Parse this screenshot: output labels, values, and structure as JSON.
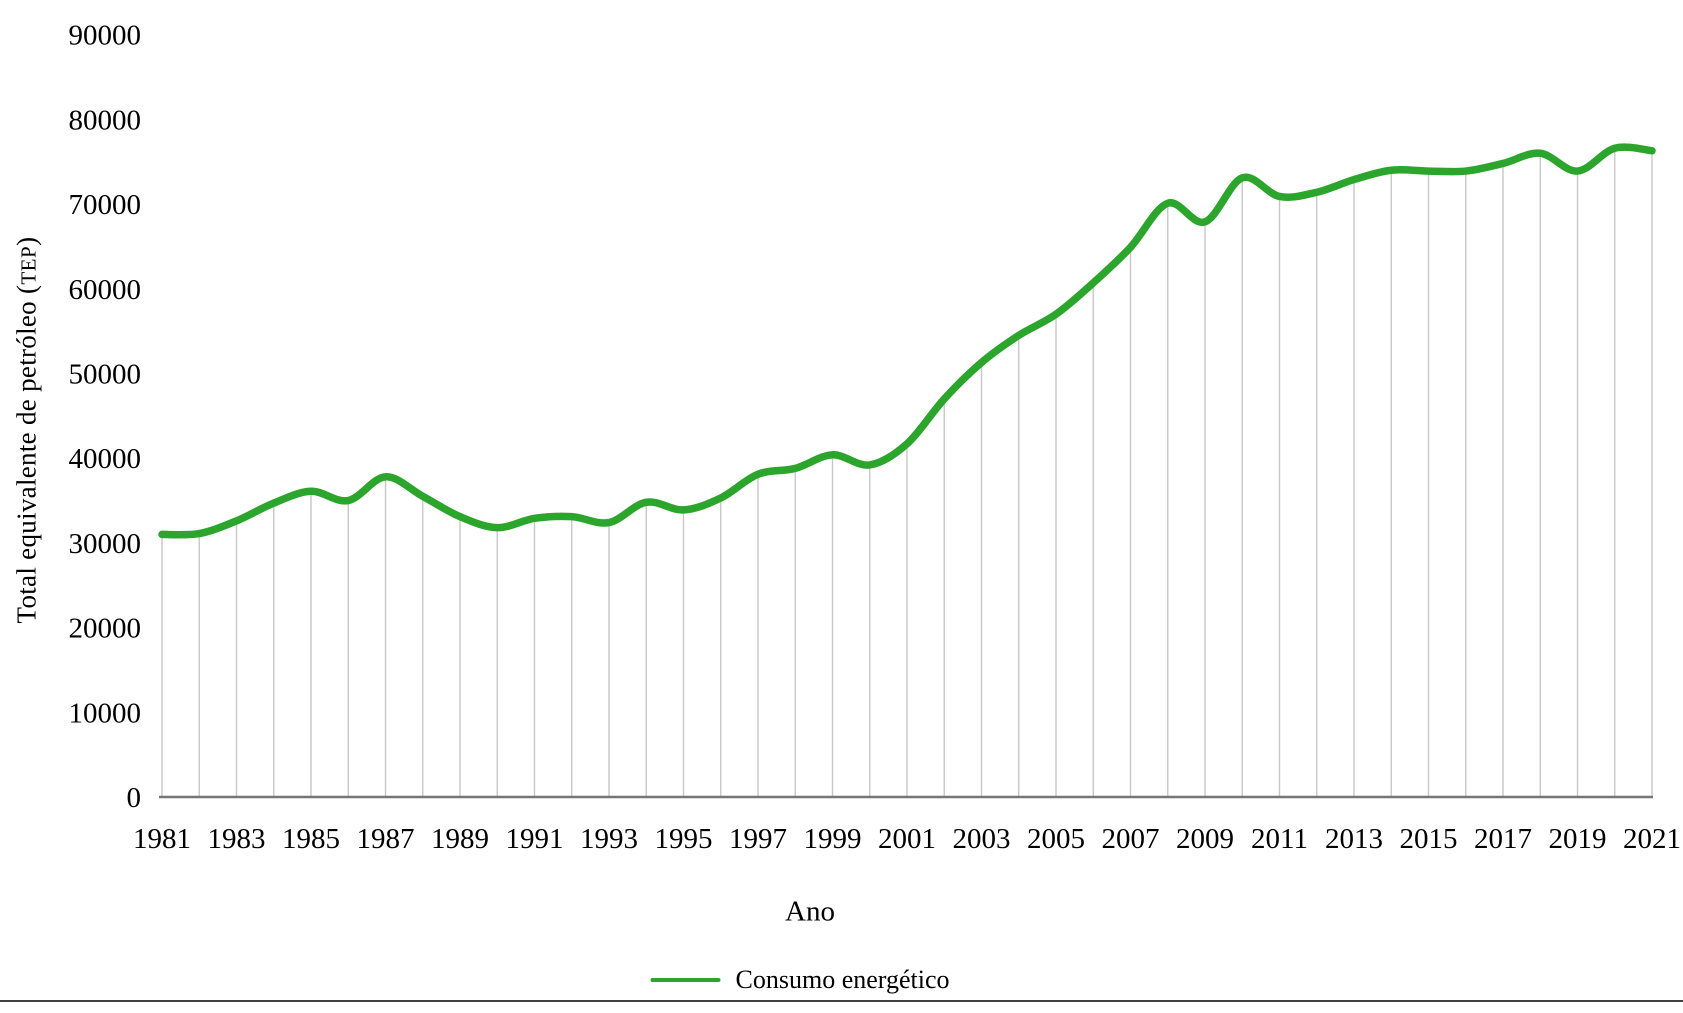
{
  "chart_data": {
    "type": "line",
    "title": "",
    "xlabel": "Ano",
    "ylabel": "Total equivalente de petróleo (TEP)",
    "ylabel_parts": {
      "prefix": "Total equivalente de petróleo (",
      "acronym": "TEP",
      "suffix": ")"
    },
    "x": [
      1981,
      1982,
      1983,
      1984,
      1985,
      1986,
      1987,
      1988,
      1989,
      1990,
      1991,
      1992,
      1993,
      1994,
      1995,
      1996,
      1997,
      1998,
      1999,
      2000,
      2001,
      2002,
      2003,
      2004,
      2005,
      2006,
      2007,
      2008,
      2009,
      2010,
      2011,
      2012,
      2013,
      2014,
      2015,
      2016,
      2017,
      2018,
      2019,
      2020,
      2021
    ],
    "series": [
      {
        "name": "Consumo energético",
        "color": "#2CA52C",
        "values": [
          31000,
          31100,
          32600,
          34700,
          36100,
          35000,
          37800,
          35500,
          33100,
          31800,
          32900,
          33100,
          32400,
          34800,
          33900,
          35300,
          38100,
          38800,
          40400,
          39200,
          41700,
          47000,
          51300,
          54500,
          57000,
          60700,
          64900,
          70100,
          67900,
          73100,
          70900,
          71400,
          72900,
          74000,
          73900,
          73900,
          74800,
          76000,
          73900,
          76600,
          76300
        ]
      }
    ],
    "ylim": [
      0,
      90000
    ],
    "ytick_step": 10000,
    "ytick_labels": [
      "0",
      "10000",
      "20000",
      "30000",
      "40000",
      "50000",
      "60000",
      "70000",
      "80000",
      "90000"
    ],
    "xtick_step": 2,
    "xtick_labels": [
      "1981",
      "1983",
      "1985",
      "1987",
      "1989",
      "1991",
      "1993",
      "1995",
      "1997",
      "1999",
      "2001",
      "2003",
      "2005",
      "2007",
      "2009",
      "2011",
      "2013",
      "2015",
      "2017",
      "2019",
      "2021"
    ],
    "grid": "vertical-drop-lines-per-year",
    "legend_position": "bottom-center",
    "line_smooth": true,
    "colors": {
      "line": "#2CA52C",
      "drop_line": "#C7C7C7",
      "axis_line": "#777777",
      "bottom_border": "#404040",
      "text": "#000000",
      "background": "#FFFFFF"
    }
  }
}
